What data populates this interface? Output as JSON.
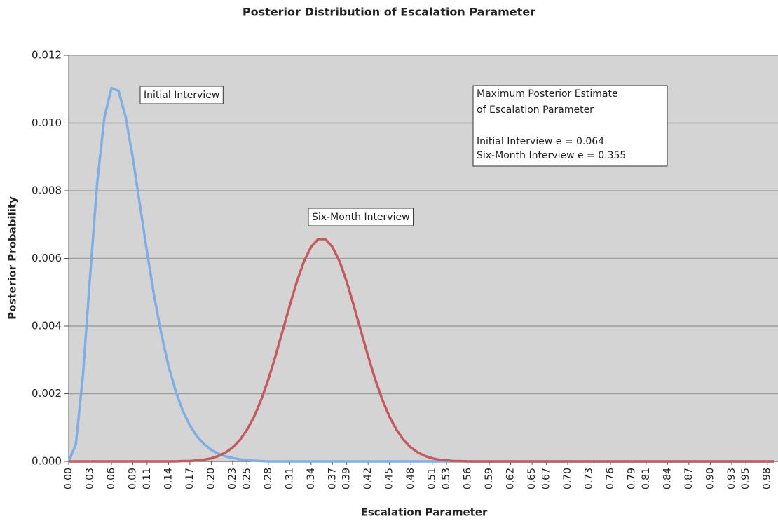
{
  "chart_data": {
    "type": "line",
    "title": "Posterior Distribution of Escalation Parameter",
    "xlabel": "Escalation Parameter",
    "ylabel": "Posterior Probability",
    "x": [
      0,
      0.01,
      0.02,
      0.03,
      0.04,
      0.05,
      0.06,
      0.07,
      0.08,
      0.09,
      0.1,
      0.11,
      0.12,
      0.13,
      0.14,
      0.15,
      0.16,
      0.17,
      0.18,
      0.19,
      0.2,
      0.21,
      0.22,
      0.23,
      0.24,
      0.25,
      0.26,
      0.27,
      0.28,
      0.29,
      0.3,
      0.31,
      0.32,
      0.33,
      0.34,
      0.35,
      0.36,
      0.37,
      0.38,
      0.39,
      0.4,
      0.41,
      0.42,
      0.43,
      0.44,
      0.45,
      0.46,
      0.47,
      0.48,
      0.49,
      0.5,
      0.51,
      0.52,
      0.53,
      0.54,
      0.55,
      0.56,
      0.57,
      0.58,
      0.59,
      0.6,
      0.61,
      0.62,
      0.63,
      0.64,
      0.65,
      0.66,
      0.67,
      0.68,
      0.69,
      0.7,
      0.71,
      0.72,
      0.73,
      0.74,
      0.75,
      0.76,
      0.77,
      0.78,
      0.79,
      0.8,
      0.81,
      0.82,
      0.83,
      0.84,
      0.85,
      0.86,
      0.87,
      0.88,
      0.89,
      0.9,
      0.91,
      0.92,
      0.93,
      0.94,
      0.95,
      0.96,
      0.97,
      0.98,
      0.99
    ],
    "series": [
      {
        "name": "Initial Interview",
        "color": "#7eaee6",
        "values": [
          0,
          0.0005,
          0.00255,
          0.00547,
          0.00824,
          0.01016,
          0.01103,
          0.01095,
          0.01017,
          0.00896,
          0.00757,
          0.00617,
          0.00488,
          0.00376,
          0.00282,
          0.00208,
          0.0015,
          0.00106,
          0.00074,
          0.00051,
          0.00034,
          0.00023,
          0.00015,
          0.0001,
          6e-05,
          4e-05,
          2e-05,
          1e-05,
          0,
          0,
          0,
          0,
          0,
          0,
          0,
          0,
          0,
          0,
          0,
          0,
          0,
          0,
          0,
          0,
          0,
          0,
          0,
          0,
          0,
          0,
          0,
          0,
          0,
          0,
          0,
          0,
          0,
          0,
          0,
          0,
          0,
          0,
          0,
          0,
          0,
          0,
          0,
          0,
          0,
          0,
          0,
          0,
          0,
          0,
          0,
          0,
          0,
          0,
          0,
          0,
          0,
          0,
          0,
          0,
          0,
          0,
          0,
          0,
          0,
          0,
          0,
          0,
          0,
          0,
          0,
          0,
          0,
          0,
          0,
          0
        ]
      },
      {
        "name": "Six-Month Interview",
        "color": "#c45a5e",
        "values": [
          0,
          0,
          0,
          0,
          0,
          0,
          0,
          0,
          0,
          0,
          0,
          0,
          0,
          0,
          0,
          0,
          1e-05,
          1e-05,
          3e-05,
          5e-05,
          9e-05,
          0.00016,
          0.00026,
          0.00041,
          0.00063,
          0.00093,
          0.00132,
          0.00182,
          0.00242,
          0.00311,
          0.00385,
          0.0046,
          0.00531,
          0.00591,
          0.00634,
          0.00657,
          0.00657,
          0.00634,
          0.00591,
          0.00531,
          0.0046,
          0.00385,
          0.00311,
          0.00242,
          0.00182,
          0.00132,
          0.00093,
          0.00063,
          0.00041,
          0.00026,
          0.00016,
          9e-05,
          5e-05,
          3e-05,
          1e-05,
          1e-05,
          0,
          0,
          0,
          0,
          0,
          0,
          0,
          0,
          0,
          0,
          0,
          0,
          0,
          0,
          0,
          0,
          0,
          0,
          0,
          0,
          0,
          0,
          0,
          0,
          0,
          0,
          0,
          0,
          0,
          0,
          0,
          0,
          0,
          0,
          0,
          0,
          0,
          0,
          0,
          0,
          0,
          0,
          0,
          0
        ]
      }
    ],
    "xlim": [
      0,
      0.995
    ],
    "xticks": [
      {
        "value": 0,
        "label": "0.00"
      },
      0.03,
      0.06,
      0.09,
      0.11,
      0.14,
      0.17,
      {
        "value": 0.2,
        "label": "0.20"
      },
      0.23,
      0.25,
      0.28,
      0.31,
      0.34,
      0.37,
      0.39,
      0.42,
      0.45,
      0.48,
      0.51,
      0.53,
      0.56,
      0.59,
      0.62,
      0.65,
      0.67,
      {
        "value": 0.7,
        "label": "0.70"
      },
      0.73,
      0.76,
      0.79,
      0.81,
      0.84,
      0.87,
      {
        "value": 0.9,
        "label": "0.90"
      },
      0.93,
      0.95,
      0.98
    ],
    "ylim": [
      0,
      0.012
    ],
    "yticks": [
      {
        "value": 0,
        "label": "0.000"
      },
      0.002,
      0.004,
      0.006,
      0.008,
      {
        "value": 0.01,
        "label": "0.010"
      },
      0.012
    ],
    "grid": true,
    "annotation": {
      "lines": [
        "Maximum Posterior Estimate",
        "of Escalation Parameter",
        "Initial Interview e = 0.064",
        "Six-Month Interview e = 0.355"
      ]
    }
  }
}
